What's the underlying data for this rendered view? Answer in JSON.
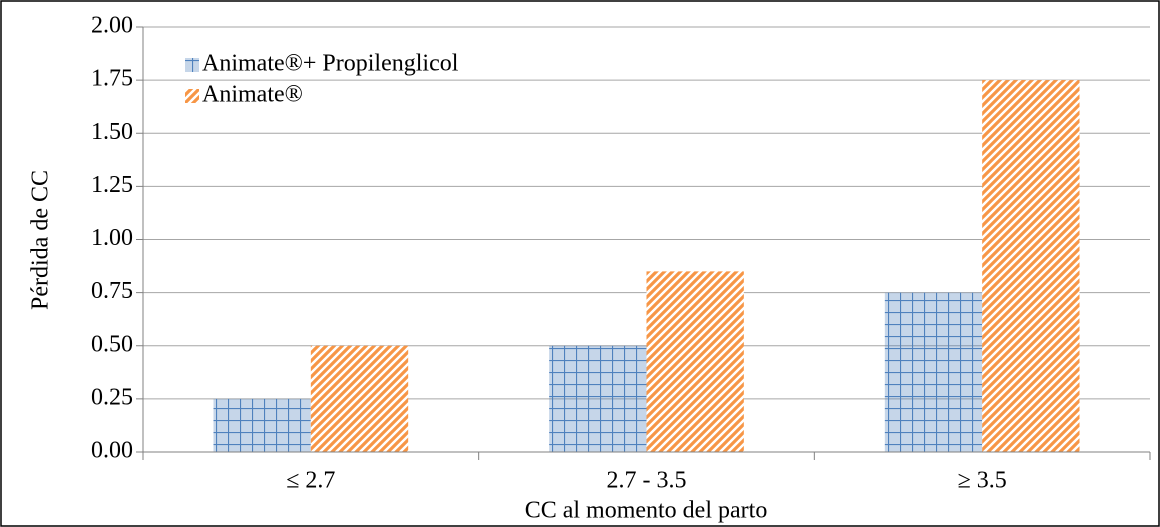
{
  "chart_data": {
    "type": "bar",
    "categories": [
      "≤ 2.7",
      "2.7 - 3.5",
      "≥ 3.5"
    ],
    "series": [
      {
        "name": "Animate®+ Propilenglicol",
        "color": "#4f81bd",
        "hatch": "grid",
        "values": [
          0.25,
          0.5,
          0.75
        ]
      },
      {
        "name": "Animate®",
        "color": "#f79646",
        "hatch": "diagonal",
        "values": [
          0.5,
          0.85,
          1.75
        ]
      }
    ],
    "y_label": "Pérdida de CC",
    "x_label": "CC al momento del parto",
    "ylim": [
      0,
      2
    ],
    "yticks": [
      {
        "value": 0,
        "label": "0.00"
      },
      {
        "value": 0.25,
        "label": "0.25"
      },
      {
        "value": 0.5,
        "label": "0.50"
      },
      {
        "value": 0.75,
        "label": "0.75"
      },
      {
        "value": 1,
        "label": "1.00"
      },
      {
        "value": 1.25,
        "label": "1.25"
      },
      {
        "value": 1.5,
        "label": "1.50"
      },
      {
        "value": 1.75,
        "label": "1.75"
      },
      {
        "value": 2,
        "label": "2.00"
      }
    ],
    "grid": true,
    "legend": "top-left"
  }
}
